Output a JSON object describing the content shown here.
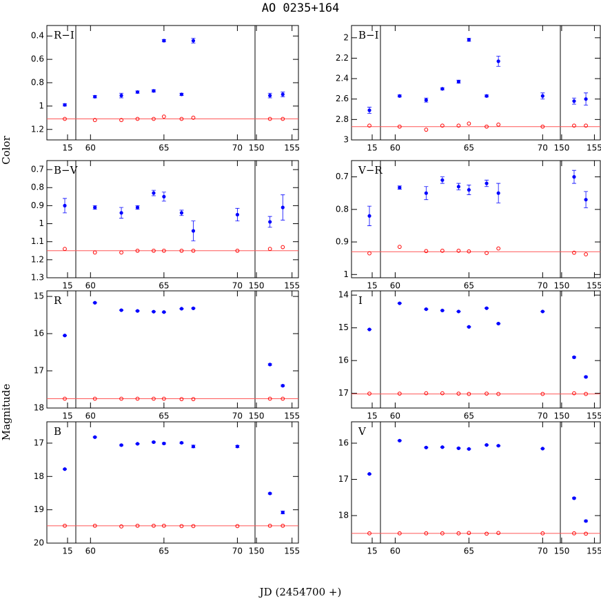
{
  "title": "AO 0235+164",
  "x_label": "JD (2454700 +)",
  "y_labels": [
    "Color",
    "Magnitude"
  ],
  "chart_data": [
    {
      "type": "scatter",
      "label": "R−I",
      "invert_y": true,
      "ylim": [
        0.31,
        1.29
      ],
      "yticks": [
        0.4,
        0.6,
        0.8,
        1,
        1.2
      ],
      "x_segments": [
        {
          "xlim": [
            12,
            16.2
          ],
          "xticks": [
            15
          ]
        },
        {
          "xlim": [
            59,
            71.2
          ],
          "xticks": [
            60,
            65,
            70
          ]
        },
        {
          "xlim": [
            149.8,
            155.9
          ],
          "xticks": [
            150,
            155
          ]
        }
      ],
      "x": [
        14.6,
        60.3,
        62.1,
        63.2,
        64.3,
        65.0,
        66.2,
        67.0,
        70.0,
        151.9,
        153.7
      ],
      "series": [
        {
          "color": "#0000ff",
          "marker": "filled",
          "values": [
            0.99,
            0.92,
            0.91,
            0.88,
            0.87,
            0.44,
            0.9,
            0.44,
            null,
            0.91,
            0.9
          ],
          "errors": [
            0.01,
            0.01,
            0.02,
            0.01,
            0.01,
            0.01,
            0.01,
            0.02,
            null,
            0.02,
            0.02
          ]
        },
        {
          "color": "#ff0000",
          "marker": "open",
          "values": [
            1.11,
            1.12,
            1.12,
            1.11,
            1.11,
            1.09,
            1.11,
            1.1,
            null,
            1.11,
            1.11
          ]
        }
      ],
      "ref_line": {
        "value": 1.11,
        "color": "#ff5555"
      }
    },
    {
      "type": "scatter",
      "label": "B−I",
      "invert_y": true,
      "ylim": [
        1.88,
        3.0
      ],
      "yticks": [
        2,
        2.2,
        2.4,
        2.6,
        2.8,
        3
      ],
      "x_segments": [
        {
          "xlim": [
            12,
            16.2
          ],
          "xticks": [
            15
          ]
        },
        {
          "xlim": [
            59,
            71.2
          ],
          "xticks": [
            60,
            65,
            70
          ]
        },
        {
          "xlim": [
            149.8,
            155.9
          ],
          "xticks": [
            150,
            155
          ]
        }
      ],
      "x": [
        14.6,
        60.3,
        62.1,
        63.2,
        64.3,
        65.0,
        66.2,
        67.0,
        70.0,
        151.9,
        153.7
      ],
      "series": [
        {
          "color": "#0000ff",
          "marker": "filled",
          "values": [
            2.71,
            2.57,
            2.61,
            2.5,
            2.43,
            2.02,
            2.57,
            2.23,
            2.57,
            2.62,
            2.6
          ],
          "errors": [
            0.03,
            0.01,
            0.02,
            0.01,
            0.015,
            0.015,
            0.01,
            0.05,
            0.03,
            0.03,
            0.06
          ]
        },
        {
          "color": "#ff0000",
          "marker": "open",
          "values": [
            2.86,
            2.87,
            2.9,
            2.86,
            2.86,
            2.84,
            2.87,
            2.85,
            2.87,
            2.86,
            2.86
          ]
        }
      ],
      "ref_line": {
        "value": 2.87,
        "color": "#ff5555"
      }
    },
    {
      "type": "scatter",
      "label": "B−V",
      "invert_y": true,
      "ylim": [
        0.65,
        1.3
      ],
      "yticks": [
        0.7,
        0.8,
        0.9,
        1,
        1.1,
        1.2,
        1.3
      ],
      "x_segments": [
        {
          "xlim": [
            12,
            16.2
          ],
          "xticks": [
            15
          ]
        },
        {
          "xlim": [
            59,
            71.2
          ],
          "xticks": [
            60,
            65,
            70
          ]
        },
        {
          "xlim": [
            149.8,
            155.9
          ],
          "xticks": [
            150,
            155
          ]
        }
      ],
      "x": [
        14.6,
        60.3,
        62.1,
        63.2,
        64.3,
        65.0,
        66.2,
        67.0,
        70.0,
        151.9,
        153.7
      ],
      "series": [
        {
          "color": "#0000ff",
          "marker": "filled",
          "values": [
            0.9,
            0.91,
            0.94,
            0.91,
            0.83,
            0.85,
            0.94,
            1.04,
            0.95,
            0.99,
            0.91
          ],
          "errors": [
            0.04,
            0.01,
            0.03,
            0.01,
            0.015,
            0.025,
            0.015,
            0.055,
            0.035,
            0.03,
            0.07
          ]
        },
        {
          "color": "#ff0000",
          "marker": "open",
          "values": [
            1.14,
            1.16,
            1.16,
            1.15,
            1.15,
            1.15,
            1.15,
            1.15,
            1.15,
            1.14,
            1.13
          ]
        }
      ],
      "ref_line": {
        "value": 1.15,
        "color": "#ff5555"
      }
    },
    {
      "type": "scatter",
      "label": "V−R",
      "invert_y": true,
      "ylim": [
        0.65,
        1.01
      ],
      "yticks": [
        0.7,
        0.8,
        0.9,
        1
      ],
      "x_segments": [
        {
          "xlim": [
            12,
            16.2
          ],
          "xticks": [
            15
          ]
        },
        {
          "xlim": [
            59,
            71.2
          ],
          "xticks": [
            60,
            65,
            70
          ]
        },
        {
          "xlim": [
            149.8,
            155.9
          ],
          "xticks": [
            150,
            155
          ]
        }
      ],
      "x": [
        14.6,
        60.3,
        62.1,
        63.2,
        64.3,
        65.0,
        66.2,
        67.0,
        70.0,
        151.9,
        153.7
      ],
      "series": [
        {
          "color": "#0000ff",
          "marker": "filled",
          "values": [
            0.82,
            0.733,
            0.75,
            0.71,
            0.73,
            0.74,
            0.72,
            0.75,
            null,
            0.7,
            0.77
          ],
          "errors": [
            0.03,
            0.005,
            0.02,
            0.01,
            0.01,
            0.015,
            0.01,
            0.03,
            null,
            0.02,
            0.025
          ]
        },
        {
          "color": "#ff0000",
          "marker": "open",
          "values": [
            0.935,
            0.915,
            0.928,
            0.927,
            0.927,
            0.929,
            0.934,
            0.92,
            null,
            0.933,
            0.938
          ]
        }
      ],
      "ref_line": {
        "value": 0.93,
        "color": "#ff5555"
      }
    },
    {
      "type": "scatter",
      "label": "R",
      "invert_y": true,
      "ylim": [
        14.85,
        18.0
      ],
      "yticks": [
        15,
        16,
        17,
        18
      ],
      "x_segments": [
        {
          "xlim": [
            12,
            16.2
          ],
          "xticks": [
            15
          ]
        },
        {
          "xlim": [
            59,
            71.2
          ],
          "xticks": [
            60,
            65,
            70
          ]
        },
        {
          "xlim": [
            149.8,
            155.9
          ],
          "xticks": [
            150,
            155
          ]
        }
      ],
      "x": [
        14.6,
        60.3,
        62.1,
        63.2,
        64.3,
        65.0,
        66.2,
        67.0,
        70.0,
        151.9,
        153.7
      ],
      "series": [
        {
          "color": "#0000ff",
          "marker": "filled",
          "values": [
            16.05,
            15.17,
            15.37,
            15.39,
            15.41,
            15.42,
            15.33,
            15.32,
            null,
            16.83,
            17.4
          ],
          "errors": [
            0.01,
            0.01,
            0.01,
            0.01,
            0.01,
            0.01,
            0.01,
            0.01,
            null,
            0.02,
            0.02
          ]
        },
        {
          "color": "#ff0000",
          "marker": "open",
          "values": [
            17.75,
            17.75,
            17.75,
            17.75,
            17.75,
            17.75,
            17.76,
            17.76,
            null,
            17.75,
            17.75
          ]
        }
      ],
      "ref_line": {
        "value": 17.75,
        "color": "#ff5555"
      }
    },
    {
      "type": "scatter",
      "label": "I",
      "invert_y": true,
      "ylim": [
        13.87,
        17.45
      ],
      "yticks": [
        14,
        15,
        16,
        17
      ],
      "x_segments": [
        {
          "xlim": [
            12,
            16.2
          ],
          "xticks": [
            15
          ]
        },
        {
          "xlim": [
            59,
            71.2
          ],
          "xticks": [
            60,
            65,
            70
          ]
        },
        {
          "xlim": [
            149.8,
            155.9
          ],
          "xticks": [
            150,
            155
          ]
        }
      ],
      "x": [
        14.6,
        60.3,
        62.1,
        63.2,
        64.3,
        65.0,
        66.2,
        67.0,
        70.0,
        151.9,
        153.7
      ],
      "series": [
        {
          "color": "#0000ff",
          "marker": "filled",
          "values": [
            15.05,
            14.25,
            14.43,
            14.47,
            14.5,
            14.97,
            14.4,
            14.87,
            14.5,
            15.9,
            16.5
          ],
          "errors": [
            0.01,
            0.01,
            0.01,
            0.01,
            0.01,
            0.01,
            0.01,
            0.01,
            0.01,
            0.02,
            0.02
          ]
        },
        {
          "color": "#ff0000",
          "marker": "open",
          "values": [
            17.01,
            17.01,
            17.0,
            17.0,
            17.01,
            17.02,
            17.01,
            17.02,
            17.02,
            17.0,
            17.02
          ]
        }
      ],
      "ref_line": {
        "value": 17.02,
        "color": "#ff5555"
      }
    },
    {
      "type": "scatter",
      "label": "B",
      "invert_y": true,
      "ylim": [
        16.36,
        20
      ],
      "yticks": [
        17,
        18,
        19,
        20
      ],
      "x_segments": [
        {
          "xlim": [
            12,
            16.2
          ],
          "xticks": [
            15
          ]
        },
        {
          "xlim": [
            59,
            71.2
          ],
          "xticks": [
            60,
            65,
            70
          ]
        },
        {
          "xlim": [
            149.8,
            155.9
          ],
          "xticks": [
            150,
            155
          ]
        }
      ],
      "x": [
        14.6,
        60.3,
        62.1,
        63.2,
        64.3,
        65.0,
        66.2,
        67.0,
        70.0,
        151.9,
        153.7
      ],
      "series": [
        {
          "color": "#0000ff",
          "marker": "filled",
          "values": [
            17.78,
            16.82,
            17.06,
            17.02,
            16.97,
            17.01,
            16.99,
            17.1,
            17.1,
            18.51,
            19.08
          ],
          "errors": [
            0.01,
            0.01,
            0.02,
            0.01,
            0.02,
            0.02,
            0.02,
            0.04,
            0.03,
            0.02,
            0.04
          ]
        },
        {
          "color": "#ff0000",
          "marker": "open",
          "values": [
            19.48,
            19.48,
            19.5,
            19.48,
            19.48,
            19.48,
            19.49,
            19.49,
            19.49,
            19.48,
            19.48
          ]
        }
      ],
      "ref_line": {
        "value": 19.48,
        "color": "#ff5555"
      }
    },
    {
      "type": "scatter",
      "label": "V",
      "invert_y": true,
      "ylim": [
        15.41,
        18.76
      ],
      "yticks": [
        16,
        17,
        18
      ],
      "x_segments": [
        {
          "xlim": [
            12,
            16.2
          ],
          "xticks": [
            15
          ]
        },
        {
          "xlim": [
            59,
            71.2
          ],
          "xticks": [
            60,
            65,
            70
          ]
        },
        {
          "xlim": [
            149.8,
            155.9
          ],
          "xticks": [
            150,
            155
          ]
        }
      ],
      "x": [
        14.6,
        60.3,
        62.1,
        63.2,
        64.3,
        65.0,
        66.2,
        67.0,
        70.0,
        151.9,
        153.7
      ],
      "series": [
        {
          "color": "#0000ff",
          "marker": "filled",
          "values": [
            16.85,
            15.93,
            16.12,
            16.11,
            16.14,
            16.16,
            16.05,
            16.07,
            16.15,
            17.52,
            18.15
          ],
          "errors": [
            0.01,
            0.01,
            0.01,
            0.01,
            0.01,
            0.01,
            0.01,
            0.01,
            0.01,
            0.02,
            0.02
          ]
        },
        {
          "color": "#ff0000",
          "marker": "open",
          "values": [
            18.49,
            18.49,
            18.49,
            18.49,
            18.49,
            18.48,
            18.5,
            18.48,
            18.49,
            18.49,
            18.5
          ]
        }
      ],
      "ref_line": {
        "value": 18.49,
        "color": "#ff5555"
      }
    }
  ]
}
